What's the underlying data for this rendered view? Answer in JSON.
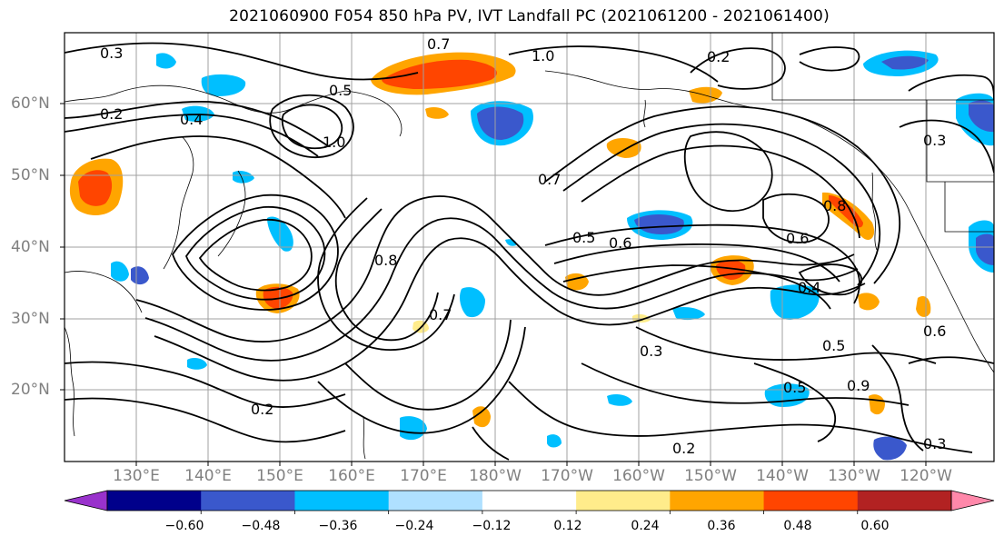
{
  "title": "2021060900 F054 850 hPa PV, IVT Landfall PC (2021061200 - 2021061400)",
  "latitude_labels": [
    "60°N",
    "50°N",
    "40°N",
    "30°N",
    "20°N"
  ],
  "longitude_labels": [
    "130°E",
    "140°E",
    "150°E",
    "160°E",
    "170°E",
    "180°W",
    "170°W",
    "160°W",
    "150°W",
    "140°W",
    "130°W",
    "120°W"
  ],
  "contour_labels": [
    "0.3",
    "0.2",
    "0.4",
    "0.5",
    "1.0",
    "0.7",
    "0.6",
    "0.8",
    "0.2",
    "0.5",
    "0.7",
    "0.3",
    "0.2",
    "0.6",
    "0.5",
    "0.3",
    "0.5",
    "0.9",
    "0.2",
    "0.3",
    "0.8",
    "0.6",
    "0.4"
  ],
  "colorbar": {
    "tick_labels": [
      "−0.60",
      "−0.48",
      "−0.36",
      "−0.24",
      "−0.12",
      "0.12",
      "0.24",
      "0.36",
      "0.48",
      "0.60"
    ],
    "colors": [
      "#9932cc",
      "#00008b",
      "#3a58cc",
      "#00bfff",
      "#afe0ff",
      "#ffffff",
      "#ffec8b",
      "#ffa500",
      "#ff4500",
      "#b22222",
      "#ff88aa"
    ]
  },
  "fill_colors": {
    "negative_weak": "#00bfff",
    "negative_mid": "#3a58cc",
    "negative_strong": "#00008b",
    "positive_weak": "#ffa500",
    "positive_mid": "#ff4500",
    "positive_light": "#ffec8b"
  }
}
